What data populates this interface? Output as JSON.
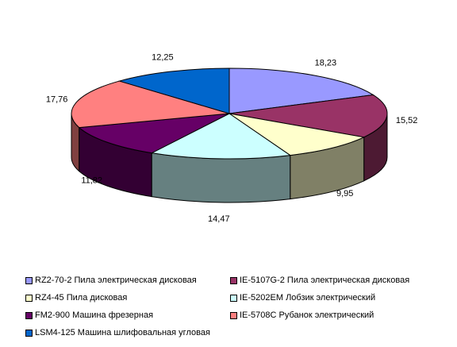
{
  "chart_data": {
    "type": "pie",
    "title": "",
    "categories": [
      "RZ2-70-2 Пила электрическая дисковая",
      "IE-5107G-2 Пила электрическая дисковая",
      "RZ4-45 Пила дисковая",
      "IE-5202EM Лобзик электрический",
      "FM2-900 Машина фрезерная",
      "IE-5708C Рубанок электрический",
      "LSM4-125 Машина шлифовальная угловая"
    ],
    "values": [
      18.23,
      15.52,
      9.95,
      14.47,
      11.82,
      17.76,
      12.25
    ],
    "value_labels": [
      "18,23",
      "15,52",
      "9,95",
      "14,47",
      "11,82",
      "17,76",
      "12,25"
    ],
    "colors": [
      "#9999FF",
      "#993366",
      "#FFFFCC",
      "#CCFFFF",
      "#660066",
      "#FF8080",
      "#0066CC"
    ],
    "three_d": true,
    "legend_position": "bottom"
  }
}
